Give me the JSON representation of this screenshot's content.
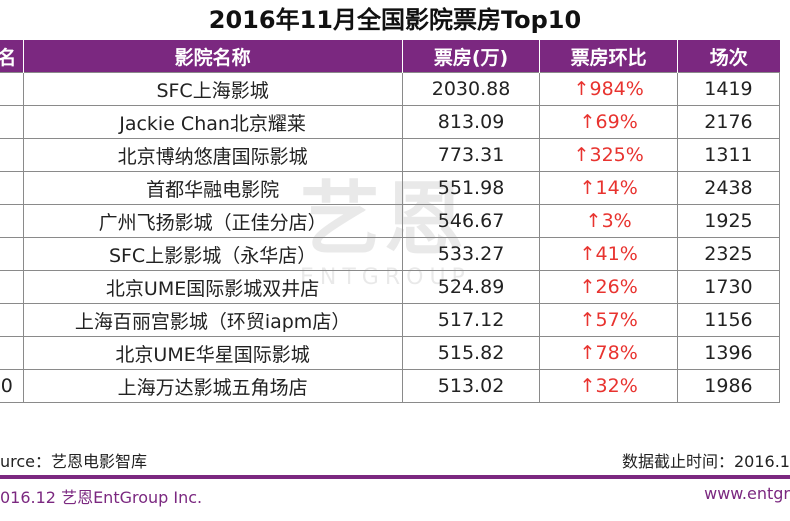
{
  "chart_data": {
    "type": "table",
    "title": "2016年11月全国影院票房Top10",
    "columns": [
      "名",
      "影院名称",
      "票房(万)",
      "票房环比",
      "场次"
    ],
    "rows": [
      {
        "rank": "",
        "name": "SFC上海影城",
        "box_office": "2030.88",
        "change": "↑984%",
        "shows": "1419"
      },
      {
        "rank": "",
        "name": "Jackie Chan北京耀莱",
        "box_office": "813.09",
        "change": "↑69%",
        "shows": "2176"
      },
      {
        "rank": "",
        "name": "北京博纳悠唐国际影城",
        "box_office": "773.31",
        "change": "↑325%",
        "shows": "1311"
      },
      {
        "rank": "",
        "name": "首都华融电影院",
        "box_office": "551.98",
        "change": "↑14%",
        "shows": "2438"
      },
      {
        "rank": "",
        "name": "广州飞扬影城（正佳分店）",
        "box_office": "546.67",
        "change": "↑3%",
        "shows": "1925"
      },
      {
        "rank": "",
        "name": "SFC上影影城（永华店）",
        "box_office": "533.27",
        "change": "↑41%",
        "shows": "2325"
      },
      {
        "rank": "",
        "name": "北京UME国际影城双井店",
        "box_office": "524.89",
        "change": "↑26%",
        "shows": "1730"
      },
      {
        "rank": "",
        "name": "上海百丽宫影城（环贸iapm店）",
        "box_office": "517.12",
        "change": "↑57%",
        "shows": "1156"
      },
      {
        "rank": "",
        "name": "北京UME华星国际影城",
        "box_office": "515.82",
        "change": "↑78%",
        "shows": "1396"
      },
      {
        "rank": "0",
        "name": "上海万达影城五角场店",
        "box_office": "513.02",
        "change": "↑32%",
        "shows": "1986"
      }
    ]
  },
  "source_text": "urce：艺恩电影智库",
  "cutoff_text": "数据截止时间：2016.1",
  "copyright_text": "016.12  艺恩EntGroup Inc.",
  "website_text": "www.entgr",
  "watermark": {
    "logo": "艺恩",
    "sub": "ENTGROUP"
  },
  "colors": {
    "header_bg": "#7b2880",
    "change_text": "#e8332f",
    "brand": "#7b2880"
  }
}
